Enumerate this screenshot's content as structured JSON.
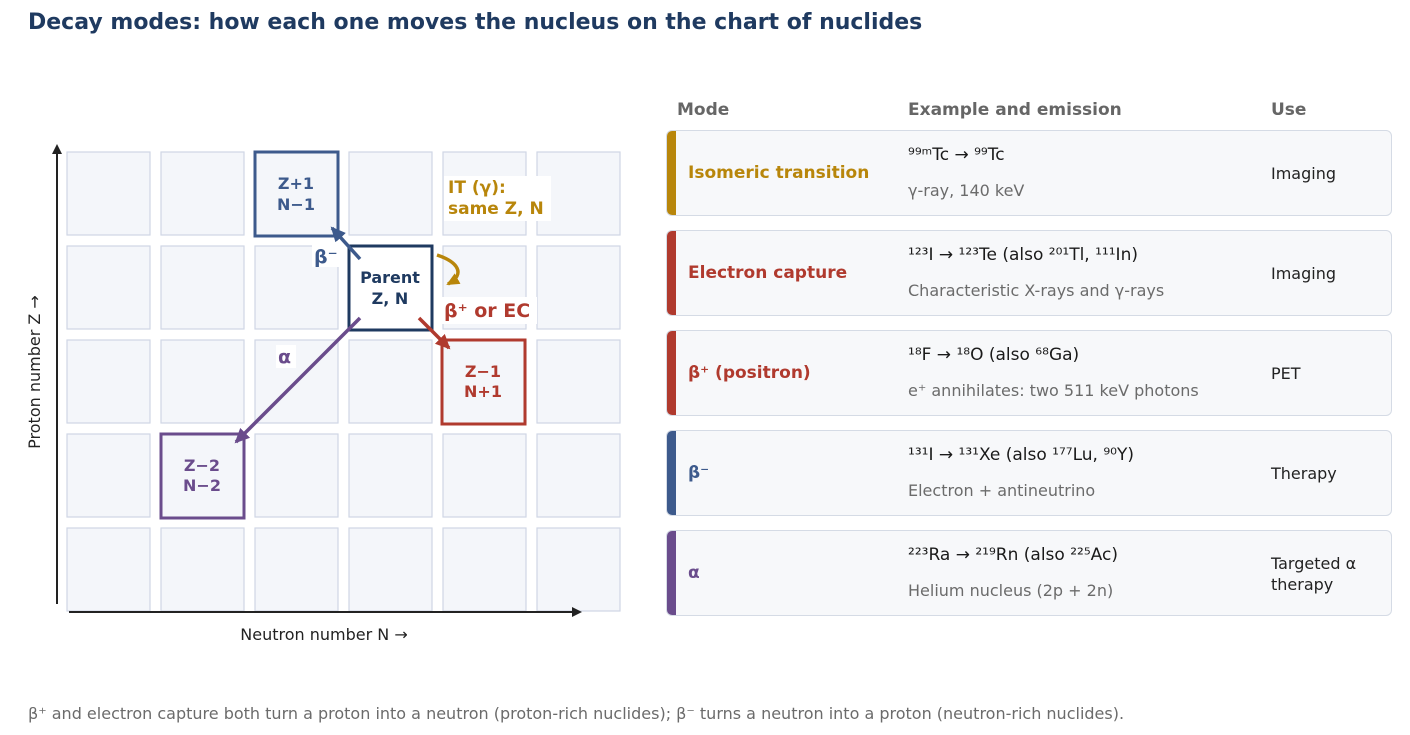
{
  "title": "Decay modes: how each one moves the nucleus on the chart of nuclides",
  "diagram": {
    "y_axis_label": "Proton number Z →",
    "x_axis_label": "Neutron number N →",
    "boxes": {
      "parent": {
        "line1": "Parent",
        "line2": "Z, N"
      },
      "beta_minus": {
        "line1": "Z+1",
        "line2": "N−1"
      },
      "beta_plus": {
        "line1": "Z−1",
        "line2": "N+1"
      },
      "alpha": {
        "line1": "Z−2",
        "line2": "N−2"
      }
    },
    "arrow_labels": {
      "beta_minus": "β⁻",
      "beta_plus": "β⁺ or EC",
      "alpha": "α",
      "it_line1": "IT (γ):",
      "it_line2": "same Z, N"
    },
    "colors": {
      "parent": "#1f3a60",
      "beta_minus": "#3d5a8c",
      "beta_plus": "#b03a2e",
      "alpha": "#6a4c8c",
      "it": "#b8860b"
    }
  },
  "table": {
    "headers": {
      "mode": "Mode",
      "example": "Example and emission",
      "use": "Use"
    },
    "rows": [
      {
        "mode": "Isomeric transition",
        "reaction": "⁹⁹ᵐTc → ⁹⁹Tc",
        "emission": "γ-ray, 140 keV",
        "use": "Imaging",
        "color": "#b8860b"
      },
      {
        "mode": "Electron capture",
        "reaction": "¹²³I → ¹²³Te  (also ²⁰¹Tl, ¹¹¹In)",
        "emission": "Characteristic X-rays and γ-rays",
        "use": "Imaging",
        "color": "#b03a2e"
      },
      {
        "mode": "β⁺ (positron)",
        "reaction": "¹⁸F → ¹⁸O  (also ⁶⁸Ga)",
        "emission": "e⁺ annihilates: two 511 keV photons",
        "use": "PET",
        "color": "#b03a2e"
      },
      {
        "mode": "β⁻",
        "reaction": "¹³¹I → ¹³¹Xe  (also ¹⁷⁷Lu, ⁹⁰Y)",
        "emission": "Electron + antineutrino",
        "use": "Therapy",
        "color": "#3d5a8c"
      },
      {
        "mode": "α",
        "reaction": "²²³Ra → ²¹⁹Rn  (also ²²⁵Ac)",
        "emission": "Helium nucleus (2p + 2n)",
        "use": "Targeted α therapy",
        "color": "#6a4c8c"
      }
    ]
  },
  "footnote": "β⁺ and electron capture both turn a proton into a neutron (proton-rich nuclides); β⁻ turns a neutron into a proton (neutron-rich nuclides)."
}
